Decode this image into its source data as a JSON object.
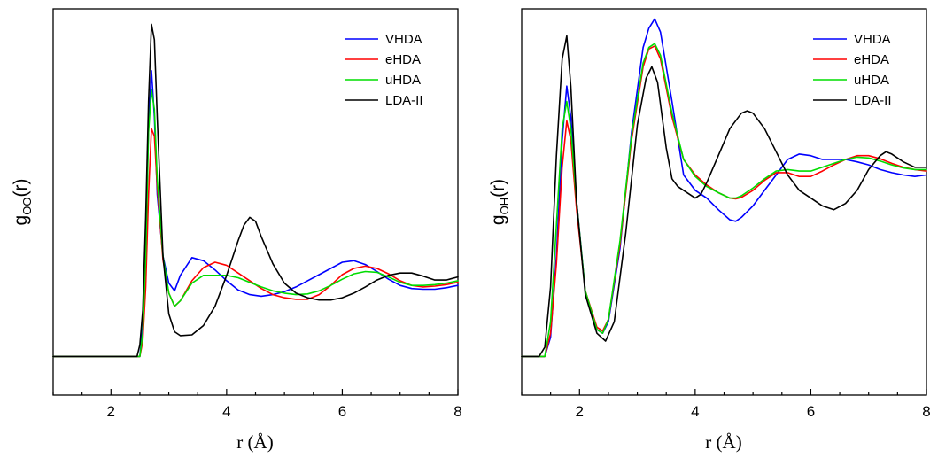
{
  "chart_data": [
    {
      "type": "line",
      "xlabel": "r (Å)",
      "ylabel_main": "g",
      "ylabel_sub": "OO",
      "ylabel_suffix": "(r)",
      "xlim": [
        1,
        8
      ],
      "ylim": [
        -0.5,
        4.5
      ],
      "xticks": [
        2,
        4,
        6,
        8
      ],
      "xtick_labels": [
        "2",
        "4",
        "6",
        "8"
      ],
      "y_tick_labels_shown": false,
      "grid": false,
      "legend_position": "top-right",
      "series": [
        {
          "name": "VHDA",
          "color": "#0000ff",
          "x": [
            1.0,
            2.5,
            2.55,
            2.6,
            2.65,
            2.7,
            2.75,
            2.8,
            2.9,
            3.0,
            3.1,
            3.2,
            3.4,
            3.6,
            3.8,
            4.0,
            4.2,
            4.4,
            4.6,
            4.8,
            5.0,
            5.2,
            5.4,
            5.6,
            5.8,
            6.0,
            6.2,
            6.4,
            6.6,
            6.8,
            7.0,
            7.2,
            7.4,
            7.6,
            7.8,
            8.0
          ],
          "y": [
            0.0,
            0.0,
            0.4,
            1.4,
            3.0,
            3.7,
            3.1,
            2.1,
            1.3,
            0.95,
            0.85,
            1.05,
            1.28,
            1.24,
            1.12,
            0.98,
            0.86,
            0.8,
            0.78,
            0.8,
            0.84,
            0.9,
            0.98,
            1.06,
            1.14,
            1.22,
            1.24,
            1.19,
            1.1,
            1.0,
            0.92,
            0.88,
            0.87,
            0.87,
            0.89,
            0.92
          ]
        },
        {
          "name": "eHDA",
          "color": "#ff0000",
          "x": [
            1.0,
            2.5,
            2.55,
            2.6,
            2.65,
            2.7,
            2.75,
            2.8,
            2.9,
            3.0,
            3.1,
            3.2,
            3.4,
            3.6,
            3.8,
            4.0,
            4.2,
            4.4,
            4.6,
            4.8,
            5.0,
            5.2,
            5.4,
            5.6,
            5.8,
            6.0,
            6.2,
            6.4,
            6.6,
            6.8,
            7.0,
            7.2,
            7.4,
            7.6,
            7.8,
            8.0
          ],
          "y": [
            0.0,
            0.0,
            0.2,
            0.9,
            2.1,
            2.95,
            2.85,
            2.2,
            1.25,
            0.82,
            0.65,
            0.72,
            0.98,
            1.15,
            1.22,
            1.18,
            1.08,
            0.98,
            0.88,
            0.8,
            0.76,
            0.74,
            0.74,
            0.8,
            0.92,
            1.06,
            1.14,
            1.17,
            1.14,
            1.07,
            0.98,
            0.92,
            0.9,
            0.91,
            0.93,
            0.96
          ]
        },
        {
          "name": "uHDA",
          "color": "#00dd00",
          "x": [
            1.0,
            2.5,
            2.55,
            2.6,
            2.65,
            2.7,
            2.75,
            2.8,
            2.9,
            3.0,
            3.1,
            3.2,
            3.4,
            3.6,
            3.8,
            4.0,
            4.2,
            4.4,
            4.6,
            4.8,
            5.0,
            5.2,
            5.4,
            5.6,
            5.8,
            6.0,
            6.2,
            6.4,
            6.6,
            6.8,
            7.0,
            7.2,
            7.4,
            7.6,
            7.8,
            8.0
          ],
          "y": [
            0.0,
            0.0,
            0.3,
            1.3,
            2.9,
            3.45,
            3.2,
            2.3,
            1.3,
            0.82,
            0.65,
            0.72,
            0.95,
            1.05,
            1.05,
            1.05,
            1.02,
            0.96,
            0.9,
            0.85,
            0.82,
            0.8,
            0.81,
            0.85,
            0.92,
            1.0,
            1.07,
            1.1,
            1.09,
            1.03,
            0.96,
            0.92,
            0.92,
            0.93,
            0.95,
            0.98
          ]
        },
        {
          "name": "LDA-II",
          "color": "#000000",
          "x": [
            1.0,
            2.45,
            2.5,
            2.55,
            2.6,
            2.65,
            2.7,
            2.75,
            2.8,
            2.9,
            3.0,
            3.1,
            3.2,
            3.4,
            3.6,
            3.8,
            4.0,
            4.2,
            4.3,
            4.4,
            4.5,
            4.6,
            4.8,
            5.0,
            5.2,
            5.4,
            5.6,
            5.8,
            6.0,
            6.2,
            6.4,
            6.6,
            6.8,
            7.0,
            7.2,
            7.4,
            7.6,
            7.8,
            8.0
          ],
          "y": [
            0.0,
            0.0,
            0.15,
            0.6,
            1.8,
            3.3,
            4.3,
            4.1,
            3.1,
            1.3,
            0.55,
            0.32,
            0.27,
            0.28,
            0.4,
            0.65,
            1.05,
            1.5,
            1.7,
            1.8,
            1.75,
            1.55,
            1.2,
            0.95,
            0.82,
            0.76,
            0.73,
            0.73,
            0.76,
            0.82,
            0.9,
            0.99,
            1.05,
            1.08,
            1.08,
            1.04,
            0.99,
            0.99,
            1.03
          ]
        }
      ]
    },
    {
      "type": "line",
      "xlabel": "r (Å)",
      "ylabel_main": "g",
      "ylabel_sub": "OH",
      "ylabel_suffix": "(r)",
      "xlim": [
        1,
        8
      ],
      "ylim": [
        -0.5,
        4.5
      ],
      "xticks": [
        2,
        4,
        6,
        8
      ],
      "xtick_labels": [
        "2",
        "4",
        "6",
        "8"
      ],
      "y_tick_labels_shown": false,
      "grid": false,
      "legend_position": "top-right",
      "series": [
        {
          "name": "VHDA",
          "color": "#0000ff",
          "x": [
            1.0,
            1.4,
            1.5,
            1.6,
            1.7,
            1.78,
            1.85,
            1.95,
            2.1,
            2.3,
            2.4,
            2.5,
            2.7,
            2.9,
            3.1,
            3.2,
            3.3,
            3.4,
            3.6,
            3.8,
            4.0,
            4.2,
            4.4,
            4.6,
            4.7,
            4.8,
            5.0,
            5.2,
            5.4,
            5.6,
            5.8,
            6.0,
            6.2,
            6.4,
            6.6,
            6.8,
            7.0,
            7.2,
            7.4,
            7.6,
            7.8,
            8.0
          ],
          "y": [
            0.0,
            0.0,
            0.25,
            1.3,
            2.8,
            3.5,
            3.1,
            2.0,
            0.85,
            0.35,
            0.3,
            0.45,
            1.4,
            2.9,
            4.0,
            4.25,
            4.37,
            4.2,
            3.3,
            2.35,
            2.15,
            2.05,
            1.9,
            1.77,
            1.75,
            1.8,
            1.95,
            2.15,
            2.35,
            2.55,
            2.62,
            2.6,
            2.55,
            2.55,
            2.55,
            2.52,
            2.48,
            2.42,
            2.38,
            2.35,
            2.33,
            2.35
          ]
        },
        {
          "name": "eHDA",
          "color": "#ff0000",
          "x": [
            1.0,
            1.4,
            1.5,
            1.6,
            1.7,
            1.78,
            1.85,
            1.95,
            2.1,
            2.3,
            2.4,
            2.5,
            2.7,
            2.9,
            3.1,
            3.2,
            3.3,
            3.4,
            3.6,
            3.8,
            4.0,
            4.2,
            4.4,
            4.6,
            4.7,
            4.8,
            5.0,
            5.2,
            5.4,
            5.6,
            5.8,
            6.0,
            6.2,
            6.4,
            6.6,
            6.8,
            7.0,
            7.2,
            7.4,
            7.6,
            7.8,
            8.0
          ],
          "y": [
            0.0,
            0.0,
            0.3,
            1.2,
            2.45,
            3.05,
            2.8,
            1.9,
            0.85,
            0.38,
            0.33,
            0.48,
            1.45,
            2.8,
            3.75,
            3.98,
            4.02,
            3.85,
            3.1,
            2.55,
            2.35,
            2.22,
            2.12,
            2.05,
            2.04,
            2.06,
            2.15,
            2.28,
            2.38,
            2.38,
            2.33,
            2.33,
            2.4,
            2.48,
            2.55,
            2.6,
            2.6,
            2.56,
            2.5,
            2.45,
            2.42,
            2.4
          ]
        },
        {
          "name": "uHDA",
          "color": "#00dd00",
          "x": [
            1.0,
            1.4,
            1.5,
            1.6,
            1.7,
            1.78,
            1.85,
            1.95,
            2.1,
            2.3,
            2.4,
            2.5,
            2.7,
            2.9,
            3.1,
            3.2,
            3.3,
            3.4,
            3.6,
            3.8,
            4.0,
            4.2,
            4.4,
            4.6,
            4.7,
            4.8,
            5.0,
            5.2,
            5.4,
            5.6,
            5.8,
            6.0,
            6.2,
            6.4,
            6.6,
            6.8,
            7.0,
            7.2,
            7.4,
            7.6,
            7.8,
            8.0
          ],
          "y": [
            0.0,
            0.0,
            0.45,
            1.7,
            2.95,
            3.3,
            2.95,
            2.0,
            0.85,
            0.35,
            0.3,
            0.48,
            1.5,
            2.85,
            3.8,
            4.0,
            4.05,
            3.9,
            3.15,
            2.55,
            2.33,
            2.2,
            2.12,
            2.05,
            2.05,
            2.08,
            2.18,
            2.3,
            2.4,
            2.42,
            2.4,
            2.4,
            2.45,
            2.5,
            2.55,
            2.58,
            2.57,
            2.53,
            2.48,
            2.44,
            2.42,
            2.42
          ]
        },
        {
          "name": "LDA-II",
          "color": "#000000",
          "x": [
            1.0,
            1.3,
            1.4,
            1.5,
            1.6,
            1.7,
            1.78,
            1.85,
            1.95,
            2.1,
            2.3,
            2.45,
            2.6,
            2.8,
            3.0,
            3.15,
            3.25,
            3.35,
            3.5,
            3.6,
            3.7,
            3.8,
            4.0,
            4.1,
            4.2,
            4.4,
            4.6,
            4.8,
            4.9,
            5.0,
            5.2,
            5.4,
            5.6,
            5.8,
            6.0,
            6.2,
            6.4,
            6.6,
            6.8,
            7.0,
            7.2,
            7.3,
            7.4,
            7.6,
            7.8,
            8.0
          ],
          "y": [
            0.0,
            0.0,
            0.12,
            0.9,
            2.6,
            3.85,
            4.15,
            3.5,
            2.0,
            0.8,
            0.3,
            0.2,
            0.45,
            1.6,
            3.0,
            3.6,
            3.75,
            3.55,
            2.7,
            2.3,
            2.2,
            2.15,
            2.05,
            2.1,
            2.25,
            2.6,
            2.95,
            3.15,
            3.18,
            3.15,
            2.95,
            2.65,
            2.35,
            2.15,
            2.05,
            1.95,
            1.9,
            1.98,
            2.15,
            2.42,
            2.6,
            2.65,
            2.62,
            2.52,
            2.45,
            2.45
          ]
        }
      ]
    }
  ]
}
